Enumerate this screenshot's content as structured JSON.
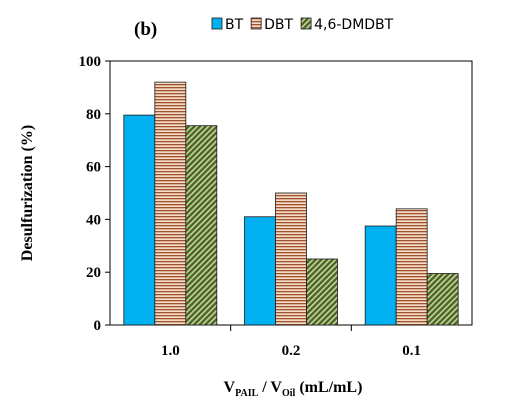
{
  "panel_label": "(b)",
  "chart_data": {
    "type": "bar",
    "categories": [
      "1.0",
      "0.2",
      "0.1"
    ],
    "series": [
      {
        "name": "BT",
        "values": [
          79.5,
          41,
          37.5
        ],
        "color": "#00b0f0",
        "pattern": "solid"
      },
      {
        "name": "DBT",
        "values": [
          92,
          50,
          44
        ],
        "color": "#e6b9a0",
        "pattern": "horizontal-stripes"
      },
      {
        "name": "4,6-DMDBT",
        "values": [
          75.5,
          25,
          19.5
        ],
        "color": "#77933c",
        "pattern": "diagonal-stripes"
      }
    ],
    "ylim": [
      0,
      100
    ],
    "yticks": [
      "0",
      "20",
      "40",
      "60",
      "80",
      "100"
    ],
    "ylabel": "Desulfurization (%)",
    "xlabel": {
      "v1": "V",
      "sub1": "PAIL",
      "slash": " / V",
      "sub2": "Oil",
      "units": " (mL/mL)"
    },
    "legend_position": "top",
    "grid": false
  }
}
